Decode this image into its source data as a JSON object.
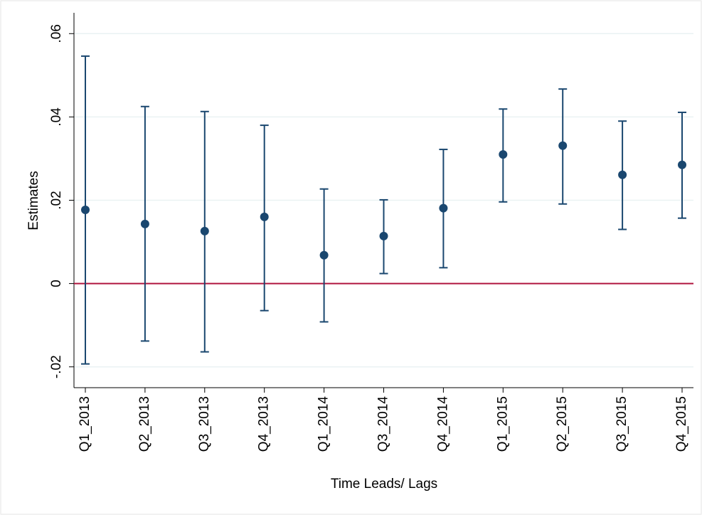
{
  "chart_data": {
    "type": "errorbar",
    "xlabel": "Time Leads/ Lags",
    "ylabel": "Estimates",
    "categories": [
      "Q1_2013",
      "Q2_2013",
      "Q3_2013",
      "Q4_2013",
      "Q1_2014",
      "Q3_2014",
      "Q4_2014",
      "Q1_2015",
      "Q2_2015",
      "Q3_2015",
      "Q4_2015"
    ],
    "series": [
      {
        "color": "#1a476f",
        "values": [
          0.0177,
          0.0143,
          0.0126,
          0.016,
          0.0068,
          0.0114,
          0.0181,
          0.031,
          0.0331,
          0.0261,
          0.0285
        ],
        "lower": [
          -0.0193,
          -0.0138,
          -0.0164,
          -0.0065,
          -0.0092,
          0.0024,
          0.0038,
          0.0196,
          0.0191,
          0.013,
          0.0157
        ],
        "upper": [
          0.0546,
          0.0425,
          0.0413,
          0.038,
          0.0227,
          0.0201,
          0.0322,
          0.0419,
          0.0467,
          0.039,
          0.0411
        ]
      }
    ],
    "ylim": [
      -0.025,
      0.065
    ],
    "yticks": [
      {
        "value": -0.02,
        "label": "-.02"
      },
      0,
      {
        "value": 0.02,
        "label": ".02"
      },
      {
        "value": 0.04,
        "label": ".04"
      },
      {
        "value": 0.06,
        "label": ".06"
      }
    ],
    "grid": true,
    "reference_line": 0,
    "reference_line_color": "#b0163f"
  }
}
